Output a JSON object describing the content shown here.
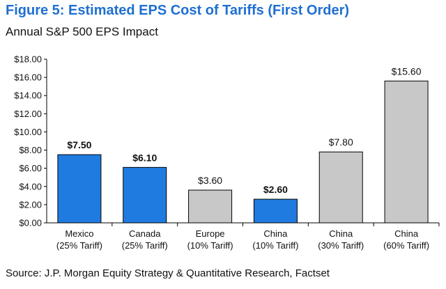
{
  "figure_title": "Figure 5: Estimated EPS Cost of Tariffs (First Order)",
  "source": "Source: J.P. Morgan Equity Strategy & Quantitative Research, Factset",
  "colors": {
    "title": "#1f6fd1",
    "highlight": "#1f7be0",
    "neutral": "#c8c8c8",
    "bar_edge": "#000000"
  },
  "chart_data": {
    "type": "bar",
    "title": "Annual S&P 500 EPS Impact",
    "xlabel": "",
    "ylabel": "",
    "ylim": [
      0,
      18
    ],
    "ytick_step": 2,
    "ytick_labels": [
      "$0.00",
      "$2.00",
      "$4.00",
      "$6.00",
      "$8.00",
      "$10.00",
      "$12.00",
      "$14.00",
      "$16.00",
      "$18.00"
    ],
    "grid": false,
    "categories": [
      {
        "line1": "Mexico",
        "line2": "(25% Tariff)"
      },
      {
        "line1": "Canada",
        "line2": "(25% Tariff)"
      },
      {
        "line1": "Europe",
        "line2": "(10% Tariff)"
      },
      {
        "line1": "China",
        "line2": "(10% Tariff)"
      },
      {
        "line1": "China",
        "line2": "(30% Tariff)"
      },
      {
        "line1": "China",
        "line2": "(60% Tariff)"
      }
    ],
    "values": [
      7.5,
      6.1,
      3.6,
      2.6,
      7.8,
      15.6
    ],
    "value_labels": [
      "$7.50",
      "$6.10",
      "$3.60",
      "$2.60",
      "$7.80",
      "$15.60"
    ],
    "highlighted": [
      true,
      true,
      false,
      true,
      false,
      false
    ]
  }
}
